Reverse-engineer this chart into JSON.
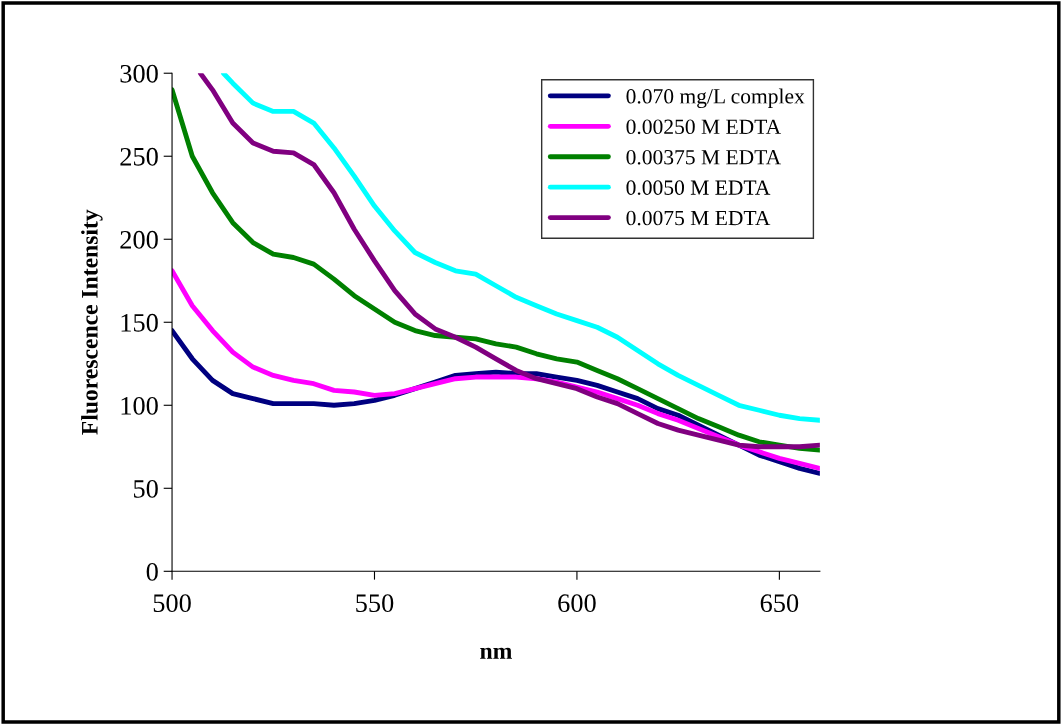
{
  "chart_data": {
    "type": "line",
    "xlabel": "nm",
    "ylabel": "Fluorescence Intensity",
    "xlim": [
      500,
      660
    ],
    "xticks": [
      500,
      550,
      600,
      650
    ],
    "ylim": [
      0,
      300
    ],
    "yticks": [
      0,
      50,
      100,
      150,
      200,
      250,
      300
    ],
    "grid": false,
    "legend": "top right",
    "marker": "none",
    "line_style": "solid",
    "series": [
      {
        "name": "0.070 mg/L complex",
        "color": "#000080",
        "x": [
          500,
          505,
          510,
          515,
          520,
          525,
          530,
          535,
          540,
          545,
          550,
          555,
          560,
          565,
          570,
          575,
          580,
          585,
          590,
          595,
          600,
          605,
          610,
          615,
          620,
          625,
          630,
          635,
          640,
          645,
          650,
          655,
          660
        ],
        "values": [
          145,
          128,
          115,
          107,
          104,
          101,
          101,
          101,
          100,
          101,
          103,
          106,
          110,
          114,
          118,
          119,
          120,
          119,
          119,
          117,
          115,
          112,
          108,
          104,
          98,
          94,
          88,
          82,
          76,
          70,
          66,
          62,
          59
        ]
      },
      {
        "name": "0.00250 M EDTA",
        "color": "#ff00ff",
        "x": [
          500,
          505,
          510,
          515,
          520,
          525,
          530,
          535,
          540,
          545,
          550,
          555,
          560,
          565,
          570,
          575,
          580,
          585,
          590,
          595,
          600,
          605,
          610,
          615,
          620,
          625,
          630,
          635,
          640,
          645,
          650,
          655,
          660
        ],
        "values": [
          181,
          160,
          145,
          132,
          123,
          118,
          115,
          113,
          109,
          108,
          106,
          107,
          110,
          113,
          116,
          117,
          117,
          117,
          116,
          114,
          111,
          108,
          104,
          100,
          95,
          91,
          86,
          81,
          76,
          72,
          68,
          65,
          62
        ]
      },
      {
        "name": "0.00375 M EDTA",
        "color": "#008000",
        "x": [
          500,
          505,
          510,
          515,
          520,
          525,
          530,
          535,
          540,
          545,
          550,
          555,
          560,
          565,
          570,
          575,
          580,
          585,
          590,
          595,
          600,
          605,
          610,
          615,
          620,
          625,
          630,
          635,
          640,
          645,
          650,
          655,
          660
        ],
        "values": [
          290,
          250,
          228,
          210,
          198,
          191,
          189,
          185,
          176,
          166,
          158,
          150,
          145,
          142,
          141,
          140,
          137,
          135,
          131,
          128,
          126,
          121,
          116,
          110,
          104,
          98,
          92,
          87,
          82,
          78,
          76,
          74,
          73
        ]
      },
      {
        "name": "0.0050 M EDTA",
        "color": "#00ffff",
        "x": [
          512.7,
          515,
          520,
          525,
          530,
          535,
          540,
          545,
          550,
          555,
          560,
          565,
          570,
          575,
          580,
          585,
          590,
          595,
          600,
          605,
          610,
          615,
          620,
          625,
          630,
          635,
          640,
          645,
          650,
          655,
          660
        ],
        "values": [
          300,
          294,
          282,
          277,
          277,
          270,
          255,
          238,
          220,
          205,
          192,
          186,
          181,
          179,
          172,
          165,
          160,
          155,
          151,
          147,
          141,
          133,
          125,
          118,
          112,
          106,
          100,
          97,
          94,
          92,
          91
        ]
      },
      {
        "name": "0.0075 M EDTA",
        "color": "#800080",
        "x": [
          507,
          510,
          515,
          520,
          525,
          530,
          535,
          540,
          545,
          550,
          555,
          560,
          565,
          570,
          575,
          580,
          585,
          590,
          595,
          600,
          605,
          610,
          615,
          620,
          625,
          630,
          635,
          640,
          645,
          650,
          655,
          660
        ],
        "values": [
          300,
          290,
          270,
          258,
          253,
          252,
          245,
          228,
          206,
          187,
          169,
          155,
          146,
          141,
          135,
          128,
          121,
          116,
          113,
          110,
          105,
          101,
          95,
          89,
          85,
          82,
          79,
          76,
          75,
          75,
          75,
          76
        ]
      }
    ]
  }
}
